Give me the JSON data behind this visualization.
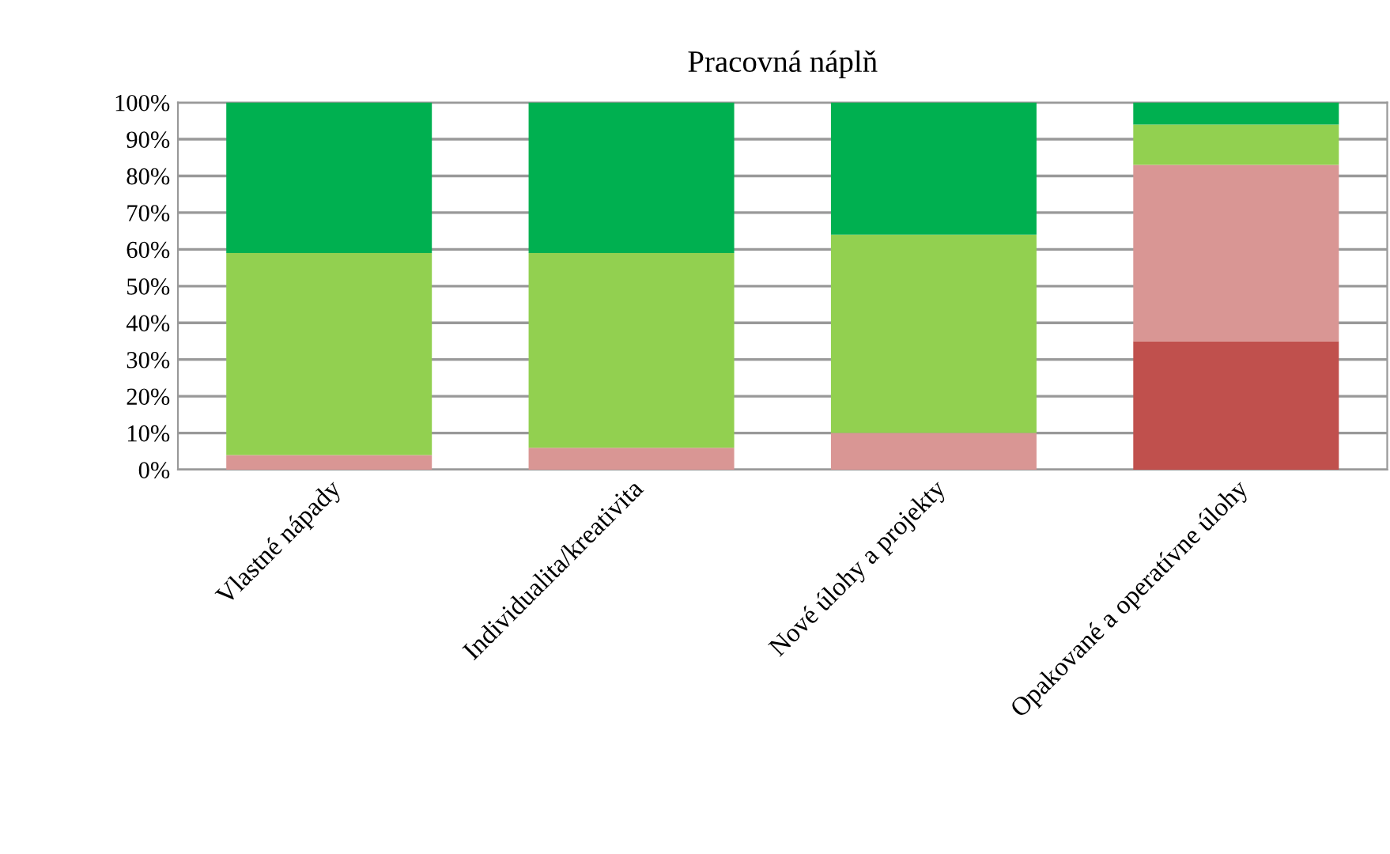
{
  "chart_data": {
    "type": "bar",
    "stacked": true,
    "title": "Pracovná náplň",
    "categories": [
      "Vlastné nápady",
      "Individualita/kreativita",
      "Nové úlohy a projekty",
      "Opakované a operatívne úlohy"
    ],
    "series": [
      {
        "color": "#c0504d",
        "values": [
          0,
          0,
          0,
          35
        ]
      },
      {
        "color": "#d99694",
        "values": [
          4,
          6,
          10,
          48
        ]
      },
      {
        "color": "#92d050",
        "values": [
          55,
          53,
          54,
          11
        ]
      },
      {
        "color": "#00b050",
        "values": [
          41,
          41,
          36,
          6
        ]
      }
    ],
    "ylim": [
      0,
      100
    ],
    "yticks": [
      {
        "value": 0,
        "label": "0%"
      },
      {
        "value": 10,
        "label": "10%"
      },
      {
        "value": 20,
        "label": "20%"
      },
      {
        "value": 30,
        "label": "30%"
      },
      {
        "value": 40,
        "label": "40%"
      },
      {
        "value": 50,
        "label": "50%"
      },
      {
        "value": 60,
        "label": "60%"
      },
      {
        "value": 70,
        "label": "70%"
      },
      {
        "value": 80,
        "label": "80%"
      },
      {
        "value": 90,
        "label": "90%"
      },
      {
        "value": 100,
        "label": "100%"
      }
    ],
    "grid": "y",
    "legend": false
  }
}
